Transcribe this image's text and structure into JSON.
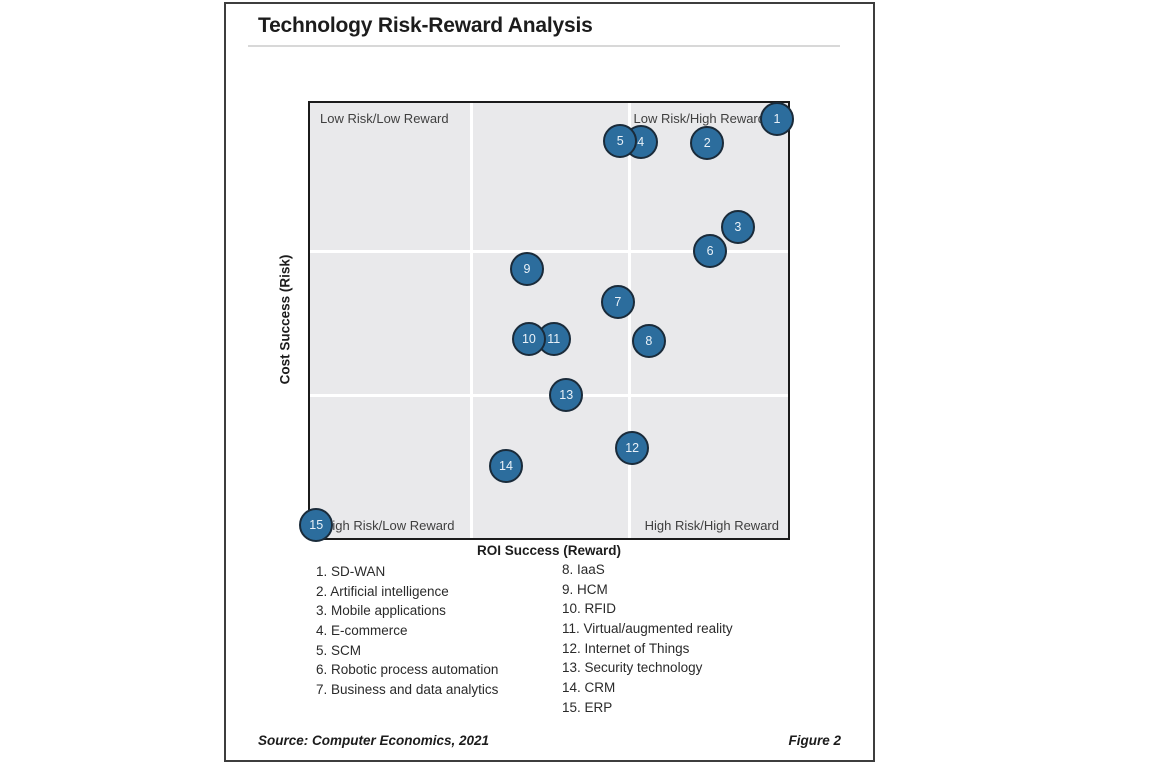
{
  "figure": {
    "title": "Technology Risk-Reward Analysis",
    "source": "Source: Computer Economics, 2021",
    "figure_label": "Figure 2"
  },
  "chart_data": {
    "type": "scatter",
    "title": "Technology Risk-Reward Analysis",
    "xlabel": "ROI Success (Reward)",
    "ylabel": "Cost Success (Risk)",
    "axes_note": "Qualitative quadrant chart, no numeric ticks; x/y are percent of plot area measured from top-left corner (x: left-to-right = increasing ROI success, y: top-to-bottom = increasing risk)",
    "grid": "3x3 white gridlines on gray plot background",
    "quadrants": {
      "top_left": "Low Risk/Low Reward",
      "top_right": "Low Risk/High Reward",
      "bottom_left": "High Risk/Low Reward",
      "bottom_right": "High Risk/High Reward"
    },
    "points": [
      {
        "n": 1,
        "name": "SD-WAN",
        "x": 97.7,
        "y": 3.7
      },
      {
        "n": 2,
        "name": "Artificial intelligence",
        "x": 83.1,
        "y": 9.2
      },
      {
        "n": 3,
        "name": "Mobile applications",
        "x": 89.5,
        "y": 28.5
      },
      {
        "n": 4,
        "name": "E-commerce",
        "x": 69.2,
        "y": 9.0,
        "z": 1
      },
      {
        "n": 5,
        "name": "SCM",
        "x": 64.9,
        "y": 8.7,
        "z": 2
      },
      {
        "n": 6,
        "name": "Robotic process automation",
        "x": 83.7,
        "y": 34.0
      },
      {
        "n": 7,
        "name": "Business and data analytics",
        "x": 64.4,
        "y": 45.7
      },
      {
        "n": 8,
        "name": "IaaS",
        "x": 70.9,
        "y": 54.7
      },
      {
        "n": 9,
        "name": "HCM",
        "x": 45.4,
        "y": 38.2
      },
      {
        "n": 10,
        "name": "RFID",
        "x": 45.8,
        "y": 54.3,
        "z": 2
      },
      {
        "n": 11,
        "name": "Virtual/augmented reality",
        "x": 51.0,
        "y": 54.3,
        "z": 1
      },
      {
        "n": 12,
        "name": "Internet of Things",
        "x": 67.4,
        "y": 79.3
      },
      {
        "n": 13,
        "name": "Security technology",
        "x": 53.6,
        "y": 67.1
      },
      {
        "n": 14,
        "name": "CRM",
        "x": 41.0,
        "y": 83.4
      },
      {
        "n": 15,
        "name": "ERP",
        "x": 1.3,
        "y": 97.0
      }
    ],
    "colors": {
      "bubble_fill": "#2c6d9d",
      "bubble_stroke": "#1a2b3a",
      "bubble_text": "#e9f1f8",
      "plot_background": "#e9e9eb",
      "gridline": "#ffffff",
      "plot_border": "#1b1b1b",
      "frame_border": "#3d3d3d",
      "title_rule": "#d8d8d8"
    }
  }
}
